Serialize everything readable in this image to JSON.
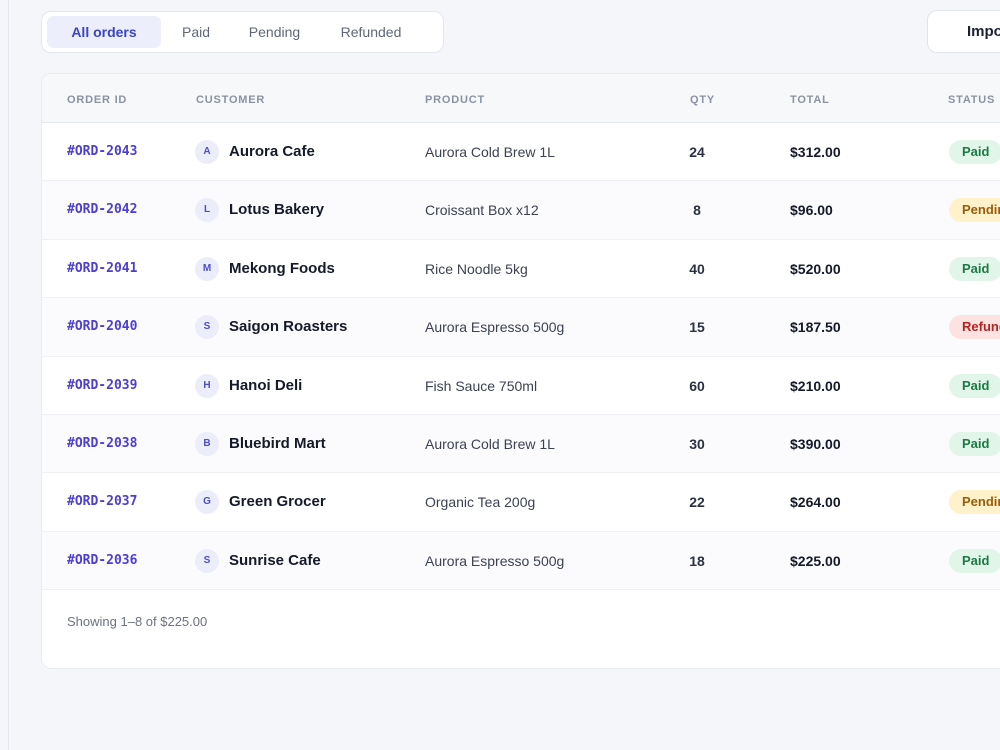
{
  "filters": {
    "tabs": [
      {
        "label": "All orders",
        "active": true
      },
      {
        "label": "Paid",
        "active": false
      },
      {
        "label": "Pending",
        "active": false
      },
      {
        "label": "Refunded",
        "active": false
      }
    ]
  },
  "toolbar": {
    "import_label": "Import"
  },
  "table": {
    "columns": [
      "ORDER ID",
      "CUSTOMER",
      "PRODUCT",
      "QTY",
      "TOTAL",
      "STATUS"
    ],
    "rows": [
      {
        "id": "#ORD-2043",
        "initial": "A",
        "customer": "Aurora Cafe",
        "product": "Aurora Cold Brew 1L",
        "qty": "24",
        "total": "$312.00",
        "status": "Paid"
      },
      {
        "id": "#ORD-2042",
        "initial": "L",
        "customer": "Lotus Bakery",
        "product": "Croissant Box x12",
        "qty": "8",
        "total": "$96.00",
        "status": "Pending"
      },
      {
        "id": "#ORD-2041",
        "initial": "M",
        "customer": "Mekong Foods",
        "product": "Rice Noodle 5kg",
        "qty": "40",
        "total": "$520.00",
        "status": "Paid"
      },
      {
        "id": "#ORD-2040",
        "initial": "S",
        "customer": "Saigon Roasters",
        "product": "Aurora Espresso 500g",
        "qty": "15",
        "total": "$187.50",
        "status": "Refunded"
      },
      {
        "id": "#ORD-2039",
        "initial": "H",
        "customer": "Hanoi Deli",
        "product": "Fish Sauce 750ml",
        "qty": "60",
        "total": "$210.00",
        "status": "Paid"
      },
      {
        "id": "#ORD-2038",
        "initial": "B",
        "customer": "Bluebird Mart",
        "product": "Aurora Cold Brew 1L",
        "qty": "30",
        "total": "$390.00",
        "status": "Paid"
      },
      {
        "id": "#ORD-2037",
        "initial": "G",
        "customer": "Green Grocer",
        "product": "Organic Tea 200g",
        "qty": "22",
        "total": "$264.00",
        "status": "Pending"
      },
      {
        "id": "#ORD-2036",
        "initial": "S",
        "customer": "Sunrise Cafe",
        "product": "Aurora Espresso 500g",
        "qty": "18",
        "total": "$225.00",
        "status": "Paid"
      }
    ]
  },
  "footer": {
    "summary": "Showing 1–8 of $225.00"
  },
  "colors": {
    "accent": "#3b44c4",
    "paid": "#1c7a44",
    "pending": "#9a5c0a",
    "refunded": "#b42323"
  }
}
